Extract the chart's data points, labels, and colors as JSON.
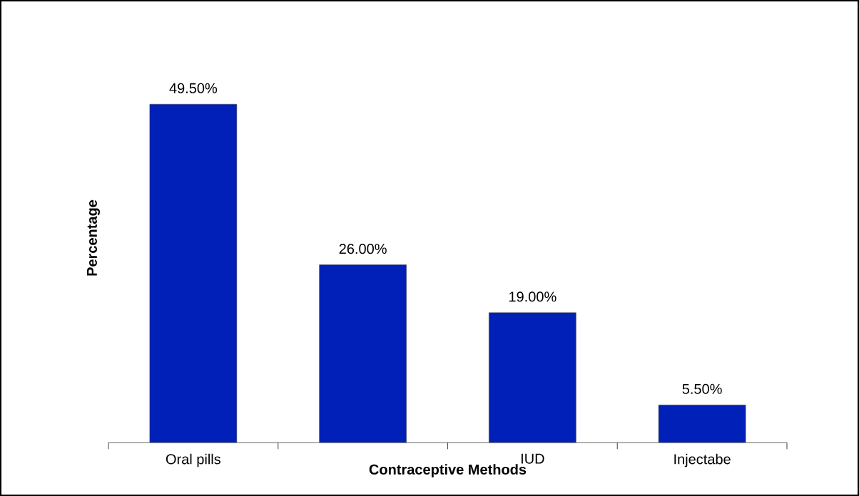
{
  "chart_data": {
    "type": "bar",
    "xlabel": "Contraceptive Methods",
    "ylabel": "Percentage",
    "categories": [
      "Oral pills",
      null,
      "IUD",
      "Injectabe"
    ],
    "values": [
      49.5,
      26.0,
      19.0,
      5.5
    ],
    "value_labels": [
      "49.50%",
      "26.00%",
      "19.00%",
      "5.50%"
    ],
    "color": "#0020b8"
  }
}
